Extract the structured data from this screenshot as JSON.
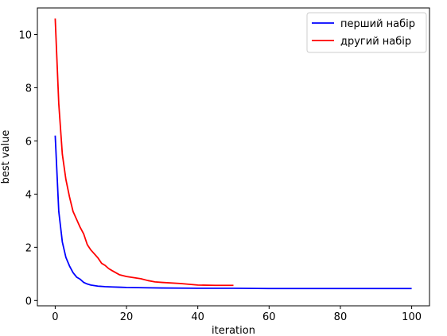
{
  "chart_data": {
    "type": "line",
    "title": "",
    "xlabel": "iteration",
    "ylabel": "best value",
    "xlim": [
      -5,
      105
    ],
    "ylim": [
      -0.2,
      11.0
    ],
    "xticks": [
      0,
      20,
      40,
      60,
      80,
      100
    ],
    "yticks": [
      0,
      2,
      4,
      6,
      8,
      10
    ],
    "grid": false,
    "legend_position": "top-right",
    "series": [
      {
        "name": "перший набір",
        "color": "#0000ff",
        "x": [
          0,
          1,
          2,
          3,
          4,
          5,
          6,
          7,
          8,
          9,
          10,
          12,
          14,
          16,
          18,
          20,
          25,
          30,
          40,
          50,
          60,
          70,
          80,
          90,
          100
        ],
        "y": [
          6.2,
          3.35,
          2.2,
          1.62,
          1.3,
          1.05,
          0.88,
          0.8,
          0.68,
          0.62,
          0.58,
          0.54,
          0.52,
          0.51,
          0.5,
          0.49,
          0.48,
          0.47,
          0.46,
          0.46,
          0.45,
          0.45,
          0.45,
          0.45,
          0.45
        ]
      },
      {
        "name": "другий набір",
        "color": "#ff0000",
        "x": [
          0,
          1,
          2,
          3,
          4,
          5,
          6,
          7,
          8,
          9,
          10,
          11,
          12,
          13,
          14,
          15,
          16,
          18,
          20,
          22,
          24,
          26,
          28,
          30,
          35,
          40,
          45,
          50
        ],
        "y": [
          10.6,
          7.4,
          5.5,
          4.55,
          3.9,
          3.35,
          3.05,
          2.75,
          2.5,
          2.1,
          1.9,
          1.75,
          1.6,
          1.4,
          1.32,
          1.2,
          1.12,
          0.97,
          0.9,
          0.86,
          0.82,
          0.75,
          0.7,
          0.68,
          0.64,
          0.58,
          0.57,
          0.57
        ]
      }
    ]
  }
}
